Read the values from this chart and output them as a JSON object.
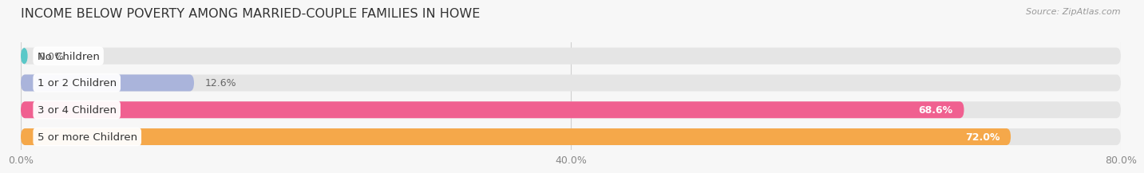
{
  "title": "INCOME BELOW POVERTY AMONG MARRIED-COUPLE FAMILIES IN HOWE",
  "source": "Source: ZipAtlas.com",
  "categories": [
    "No Children",
    "1 or 2 Children",
    "3 or 4 Children",
    "5 or more Children"
  ],
  "values": [
    0.0,
    12.6,
    68.6,
    72.0
  ],
  "bar_colors": [
    "#5bc8c8",
    "#aab4db",
    "#f06090",
    "#f5a84a"
  ],
  "label_colors": [
    "#444444",
    "#444444",
    "#444444",
    "#444444"
  ],
  "value_inside_colors": [
    "#555555",
    "#555555",
    "#ffffff",
    "#ffffff"
  ],
  "bg_color": "#f7f7f7",
  "bar_bg_color": "#e5e5e5",
  "xlim": [
    0,
    80
  ],
  "xticks": [
    0.0,
    40.0,
    80.0
  ],
  "xtick_labels": [
    "0.0%",
    "40.0%",
    "80.0%"
  ],
  "bar_height": 0.62,
  "title_fontsize": 11.5,
  "label_fontsize": 9.5,
  "value_fontsize": 9
}
